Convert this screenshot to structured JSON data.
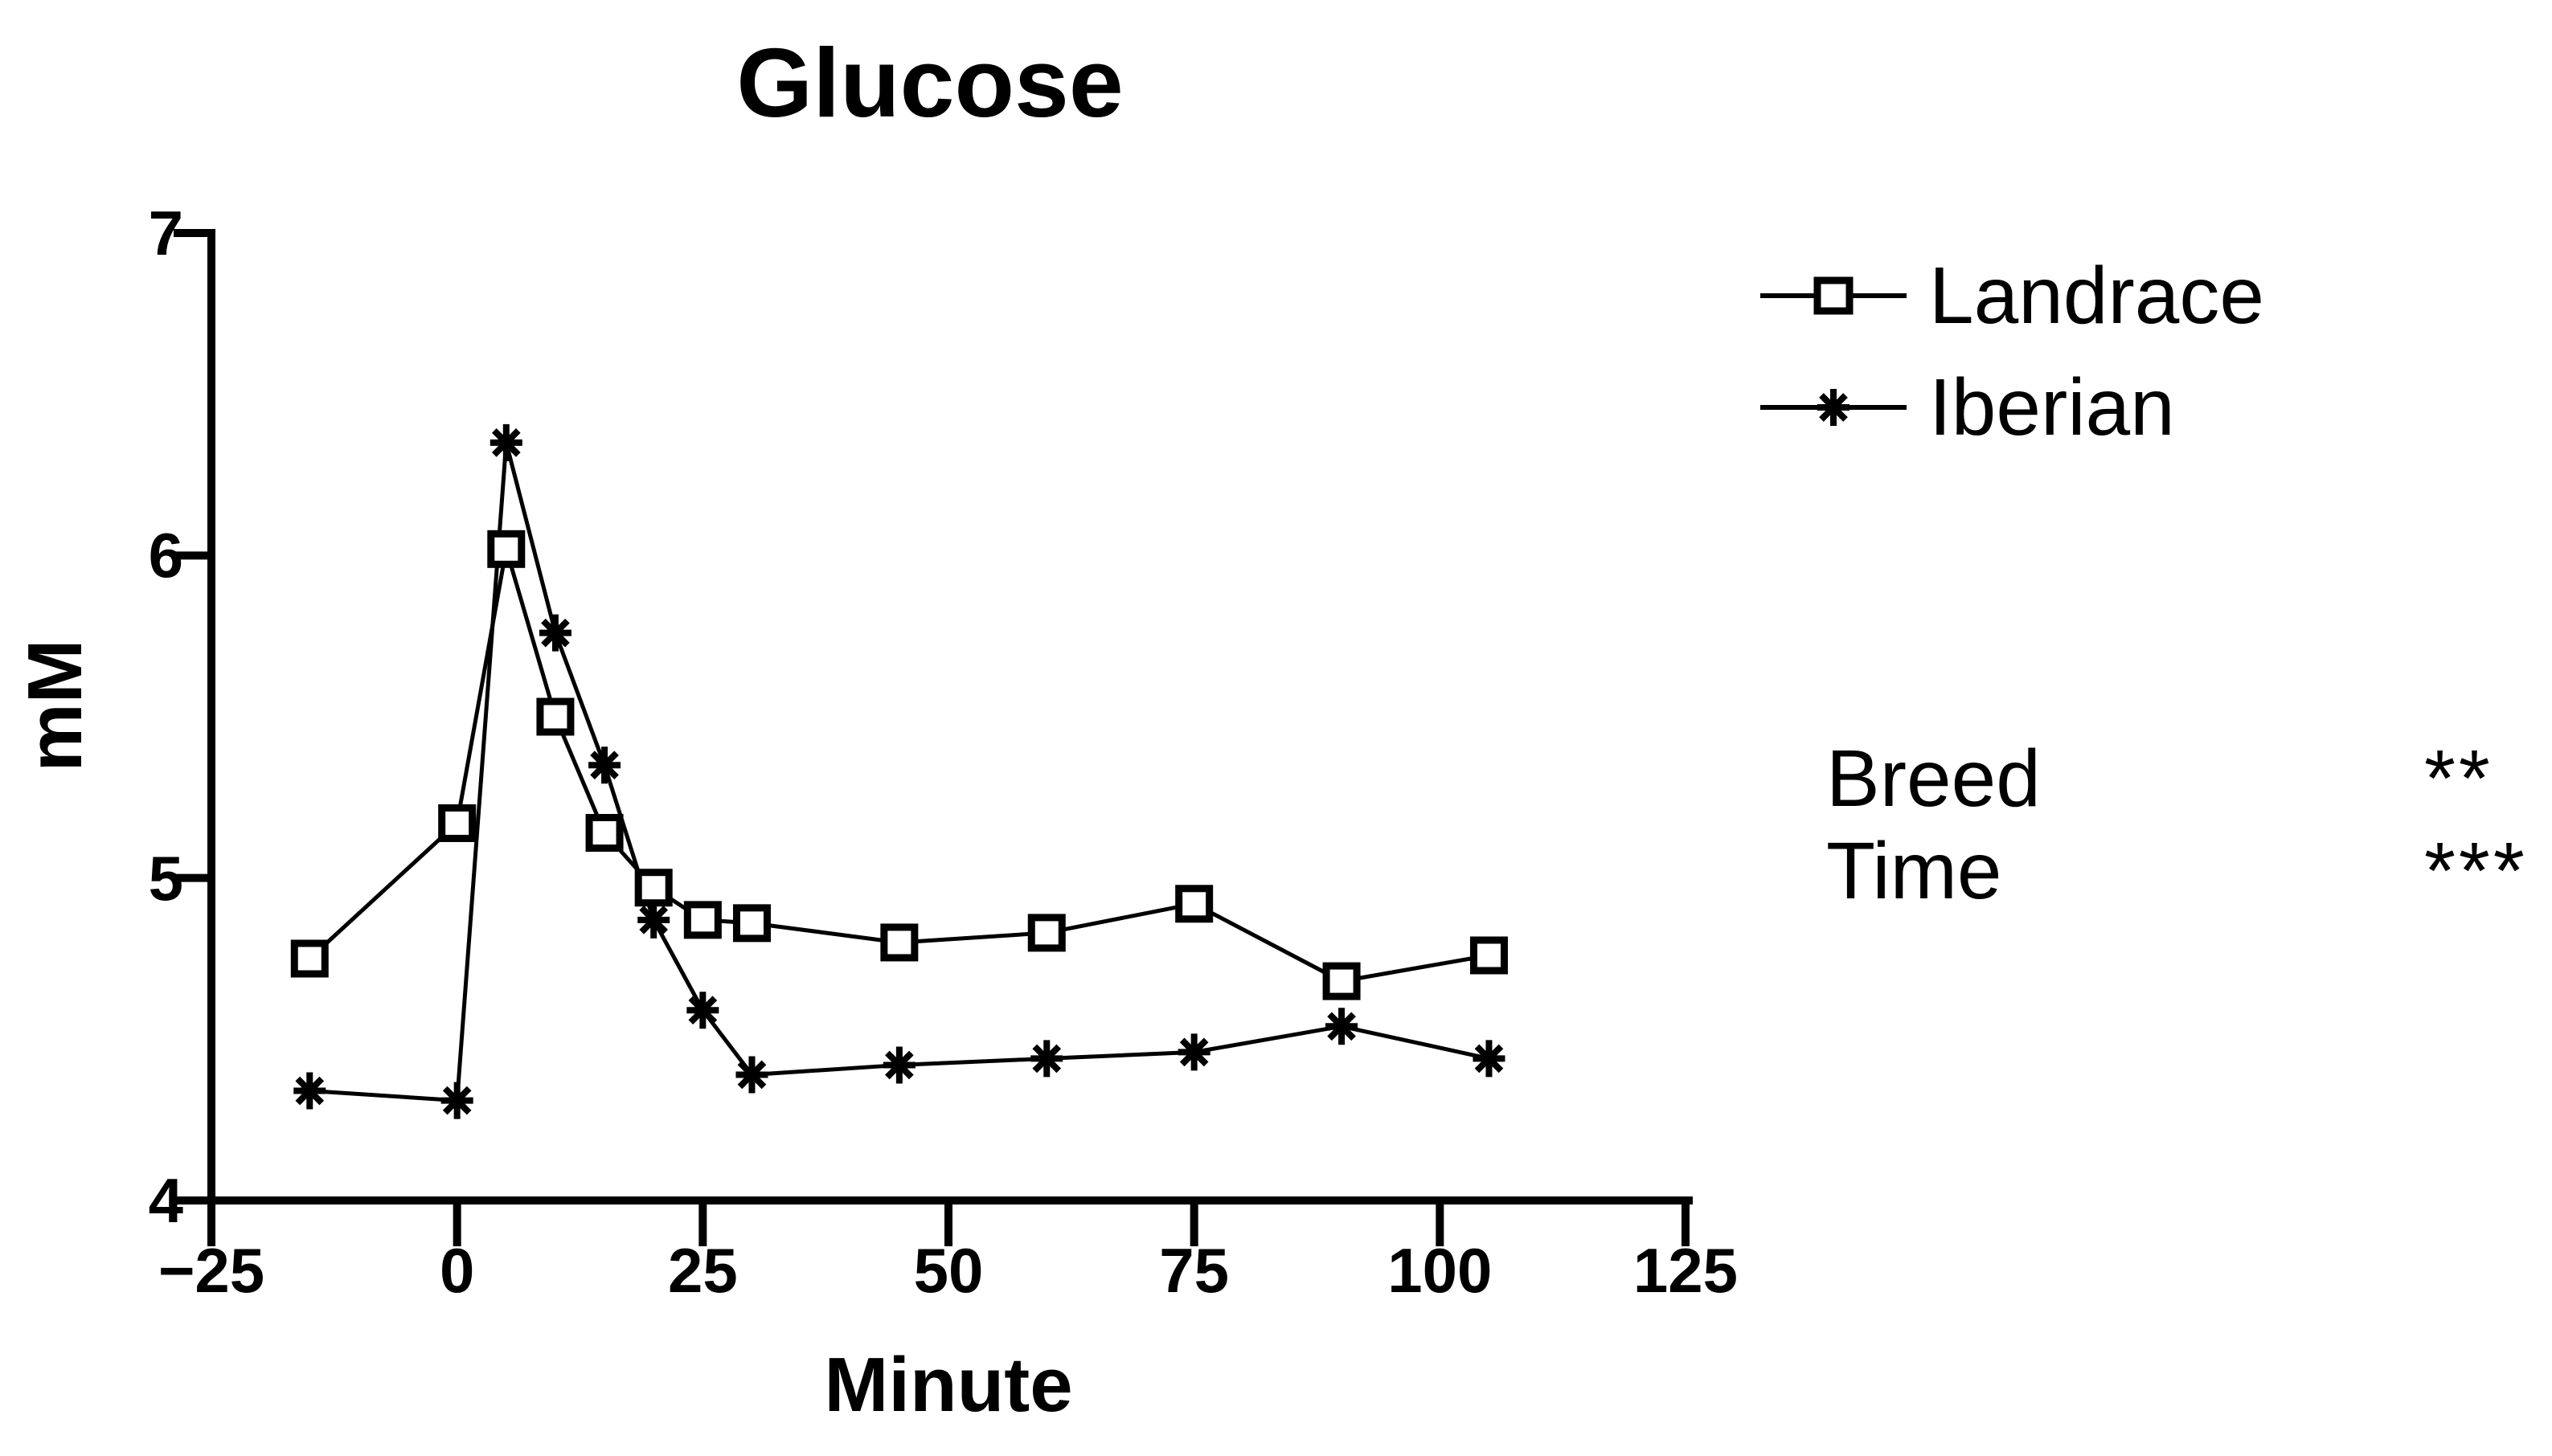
{
  "title": "Glucose",
  "chart_data": {
    "type": "line",
    "title": "Glucose",
    "xlabel": "Minute",
    "ylabel": "mM",
    "xlim": [
      -25,
      125
    ],
    "ylim": [
      4,
      7
    ],
    "grid": false,
    "legend_position": "top-right",
    "x": [
      -15,
      0,
      5,
      10,
      15,
      20,
      25,
      30,
      45,
      60,
      75,
      90,
      105
    ],
    "series": [
      {
        "name": "Landrace",
        "marker": "open-square",
        "color": "#000000",
        "values": [
          4.75,
          5.17,
          6.02,
          5.5,
          5.14,
          4.97,
          4.87,
          4.86,
          4.8,
          4.83,
          4.92,
          4.68,
          4.76
        ]
      },
      {
        "name": "Iberian",
        "marker": "asterisk",
        "color": "#000000",
        "values": [
          4.34,
          4.31,
          6.35,
          5.76,
          5.35,
          4.87,
          4.59,
          4.39,
          4.42,
          4.44,
          4.46,
          4.54,
          4.44
        ]
      }
    ],
    "xticks": [
      -25,
      0,
      25,
      50,
      75,
      100,
      125
    ],
    "xtick_labels": [
      "−25",
      "0",
      "25",
      "50",
      "75",
      "100",
      "125"
    ],
    "yticks": [
      4,
      5,
      6,
      7
    ],
    "ytick_labels": [
      "4",
      "5",
      "6",
      "7"
    ]
  },
  "legend": {
    "items": [
      {
        "label": "Landrace",
        "marker": "open-square"
      },
      {
        "label": "Iberian",
        "marker": "asterisk"
      }
    ]
  },
  "annotations": [
    {
      "label": "Breed",
      "stars": "**"
    },
    {
      "label": "Time",
      "stars": "***"
    }
  ],
  "colors": {
    "foreground": "#000000",
    "background": "#ffffff"
  }
}
